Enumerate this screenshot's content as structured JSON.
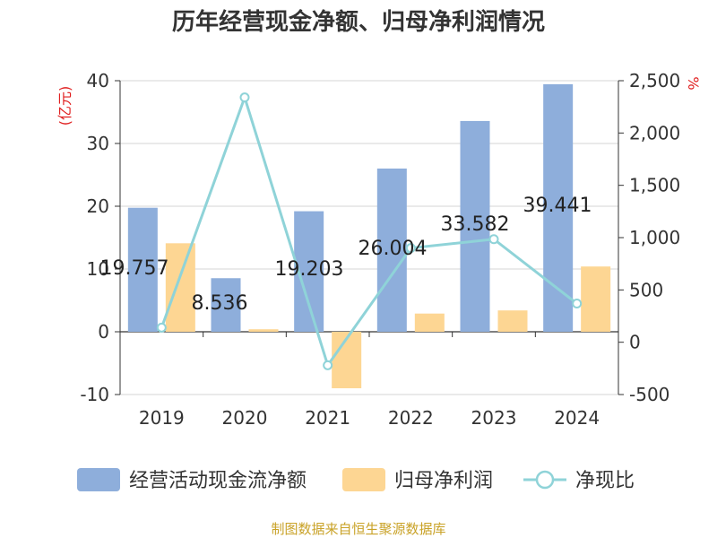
{
  "chart_data": {
    "type": "bar",
    "title": "历年经营现金净额、归母净利润情况",
    "categories": [
      "2019",
      "2020",
      "2021",
      "2022",
      "2023",
      "2024"
    ],
    "series": [
      {
        "name": "经营活动现金流净额",
        "type": "bar",
        "axis": "left",
        "color": "#8eaedb",
        "values": [
          19.757,
          8.536,
          19.203,
          26.004,
          33.582,
          39.441
        ]
      },
      {
        "name": "归母净利润",
        "type": "bar",
        "axis": "left",
        "color": "#fdd693",
        "values": [
          14.1,
          0.4,
          -9.0,
          2.9,
          3.4,
          10.4
        ]
      },
      {
        "name": "净现比",
        "type": "line",
        "axis": "right",
        "color": "#8fd3d8",
        "values": [
          140,
          2340,
          -220,
          900,
          985,
          370
        ]
      }
    ],
    "data_labels": [
      "19.757",
      "8.536",
      "19.203",
      "26.004",
      "33.582",
      "39.441"
    ],
    "y_left": {
      "unit": "(亿元)",
      "min": -10,
      "max": 40,
      "ticks": [
        "-10",
        "0",
        "10",
        "20",
        "30",
        "40"
      ]
    },
    "y_right": {
      "unit": "%",
      "min": -500,
      "max": 2500,
      "ticks": [
        "-500",
        "0",
        "500",
        "1,000",
        "1,500",
        "2,000",
        "2,500"
      ]
    },
    "grid": true,
    "legend": "bottom",
    "source": "制图数据来自恒生聚源数据库"
  }
}
